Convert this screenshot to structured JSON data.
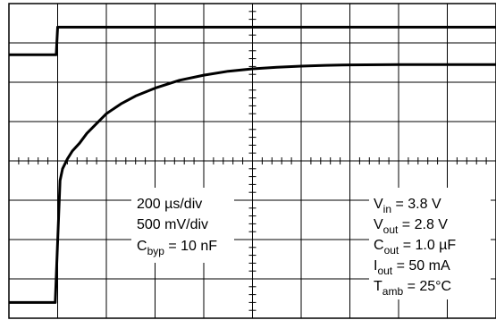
{
  "chart_data": {
    "type": "line",
    "title": "",
    "xlabel": "",
    "ylabel": "",
    "grid": true,
    "grid_divisions": {
      "x": 10,
      "y": 8
    },
    "time_per_div_us": 200,
    "volts_per_div_mV": 500,
    "x_unit": "div",
    "xlim": [
      0,
      10
    ],
    "ylim": [
      0,
      8
    ],
    "series": [
      {
        "x": [
          0,
          0.97,
          1.0,
          10
        ],
        "values": [
          6.7,
          6.7,
          7.4,
          7.4
        ]
      },
      {
        "x": [
          0,
          0.95,
          1.05,
          1.1,
          1.2,
          1.3,
          1.45,
          1.6,
          1.8,
          2.0,
          2.3,
          2.6,
          3.0,
          3.5,
          4.0,
          4.5,
          5.0,
          5.5,
          6.0,
          6.5,
          7.0,
          8.0,
          9.0,
          10.0
        ],
        "values": [
          0.4,
          0.4,
          3.5,
          3.8,
          4.05,
          4.25,
          4.45,
          4.7,
          4.95,
          5.2,
          5.45,
          5.65,
          5.85,
          6.05,
          6.18,
          6.28,
          6.34,
          6.38,
          6.41,
          6.43,
          6.44,
          6.45,
          6.45,
          6.45
        ]
      }
    ],
    "annotations_left": [
      "200 µs/div",
      "500 mV/div"
    ],
    "annotations_right": [
      "V",
      "in",
      " = 3.8 V",
      "V",
      "out",
      " = 2.8 V",
      "C",
      "out",
      " = 1.0 µF",
      "I",
      "out",
      " = 50 mA",
      "T",
      "amb",
      " = 25°C"
    ],
    "annotations_cbyp": [
      "C",
      "byp",
      " = 10 nF"
    ]
  }
}
